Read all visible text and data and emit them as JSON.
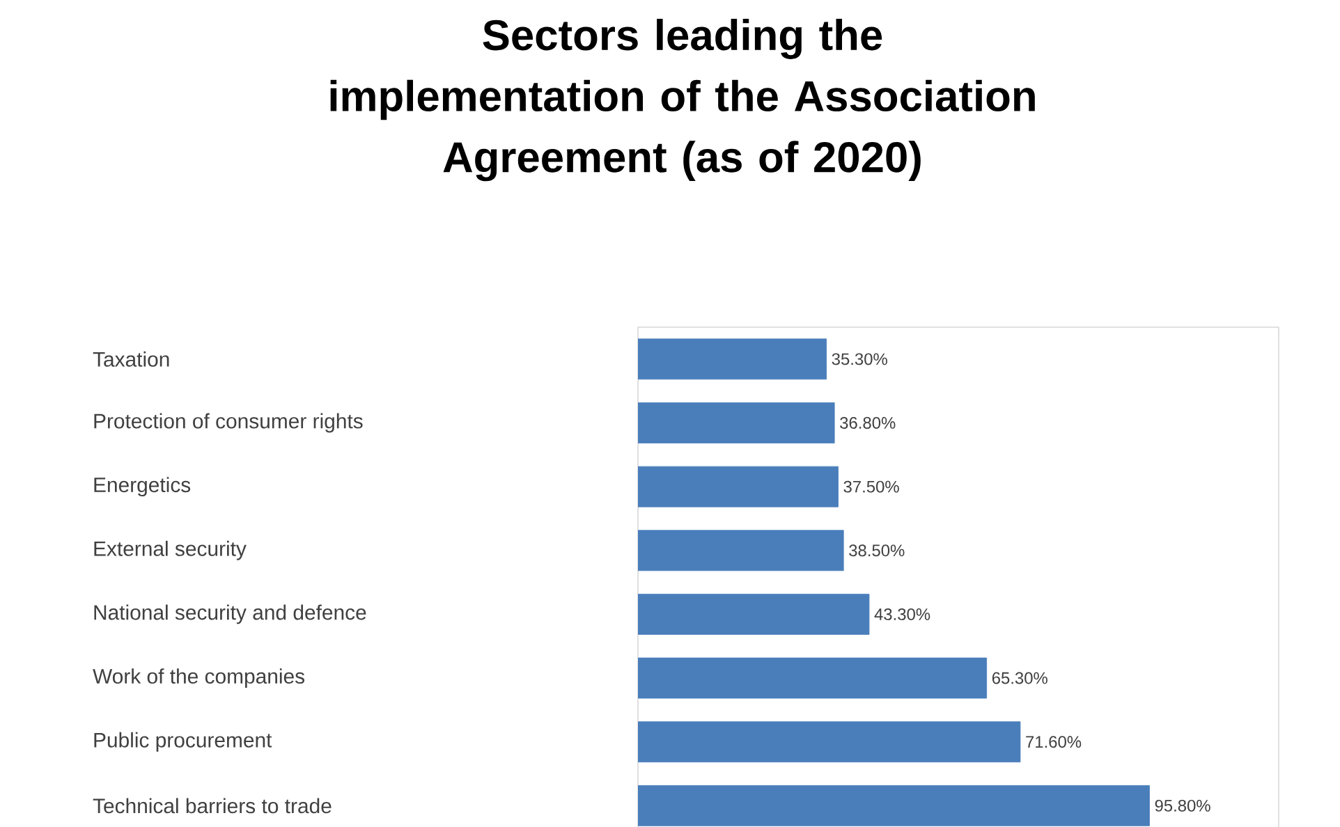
{
  "chart_data": {
    "type": "bar",
    "orientation": "horizontal",
    "title": "Sectors leading the implementation of the Association Agreement (as of 2020)",
    "categories": [
      "Taxation",
      "Protection of consumer rights",
      "Energetics",
      "External security",
      "National security and defence",
      "Work of the companies",
      "Public procurement",
      "Technical barriers to trade"
    ],
    "values": [
      35.3,
      36.8,
      37.5,
      38.5,
      43.3,
      65.3,
      71.6,
      95.8
    ],
    "value_labels": [
      "35.30%",
      "36.80%",
      "37.50%",
      "38.50%",
      "43.30%",
      "65.30%",
      "71.60%",
      "95.80%"
    ],
    "color": "#4a7ebb",
    "xlim": [
      0,
      120
    ],
    "tick_labels": "y"
  }
}
